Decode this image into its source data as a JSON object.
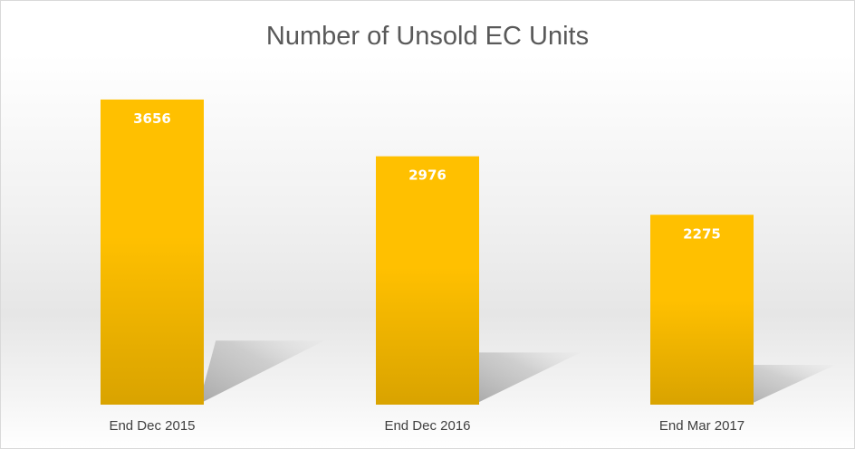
{
  "chart_data": {
    "type": "bar",
    "title": "Number of Unsold EC Units",
    "categories": [
      "End Dec 2015",
      "End Dec 2016",
      "End Mar 2017"
    ],
    "values": [
      3656,
      2976,
      2275
    ],
    "data_labels": [
      "3656",
      "2976",
      "2275"
    ],
    "xlabel": "",
    "ylabel": "",
    "ylim": [
      0,
      4000
    ],
    "grid": false,
    "legend": "none",
    "colors": {
      "bar_top": "#FFC000",
      "bar_bottom": "#D9A300",
      "data_label": "#FFFFFF",
      "title": "#595959",
      "category_label": "#404040",
      "shadow": "#9A9A9A"
    }
  }
}
